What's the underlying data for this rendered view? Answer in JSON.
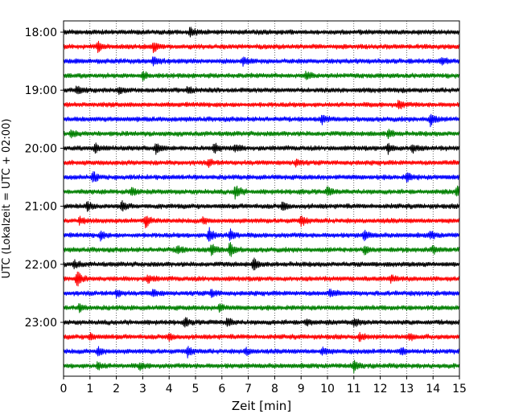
{
  "chart_data": {
    "type": "line",
    "title": "",
    "xlabel": "Zeit  [min]",
    "ylabel": "UTC (Lokalzeit = UTC + 02:00)",
    "xlim": [
      0,
      15
    ],
    "x_ticks": [
      0,
      1,
      2,
      3,
      4,
      5,
      6,
      7,
      8,
      9,
      10,
      11,
      12,
      13,
      14,
      15
    ],
    "x_tick_labels": [
      "0",
      "1",
      "2",
      "3",
      "4",
      "5",
      "6",
      "7",
      "8",
      "9",
      "10",
      "11",
      "12",
      "13",
      "14",
      "15"
    ],
    "y_tick_labels": [
      "18:00",
      "19:00",
      "20:00",
      "21:00",
      "22:00",
      "23:00"
    ],
    "grid": "vertical dotted",
    "trace_colors": [
      "#000000",
      "#ff0000",
      "#0000ff",
      "#008000"
    ],
    "traces": [
      {
        "start": "18:00",
        "events": [
          [
            4.8,
            2.2
          ]
        ]
      },
      {
        "start": "18:15",
        "events": [
          [
            1.3,
            2.0
          ],
          [
            3.4,
            2.5
          ]
        ]
      },
      {
        "start": "18:30",
        "events": [
          [
            3.4,
            2.0
          ],
          [
            6.8,
            1.8
          ],
          [
            14.3,
            1.6
          ]
        ]
      },
      {
        "start": "18:45",
        "events": [
          [
            3.0,
            1.7
          ],
          [
            9.2,
            1.8
          ]
        ]
      },
      {
        "start": "19:00",
        "events": [
          [
            0.5,
            1.5
          ],
          [
            2.1,
            1.4
          ],
          [
            4.7,
            1.4
          ]
        ]
      },
      {
        "start": "19:15",
        "events": [
          [
            12.7,
            1.8
          ]
        ]
      },
      {
        "start": "19:30",
        "events": [
          [
            9.8,
            1.6
          ],
          [
            13.9,
            3.0
          ]
        ]
      },
      {
        "start": "19:45",
        "events": [
          [
            0.3,
            1.5
          ],
          [
            12.3,
            1.7
          ]
        ]
      },
      {
        "start": "20:00",
        "events": [
          [
            1.2,
            1.9
          ],
          [
            3.5,
            2.6
          ],
          [
            5.7,
            2.4
          ],
          [
            6.5,
            1.7
          ],
          [
            12.3,
            2.0
          ],
          [
            13.2,
            2.0
          ]
        ]
      },
      {
        "start": "20:15",
        "events": [
          [
            5.5,
            1.4
          ],
          [
            8.8,
            1.4
          ]
        ]
      },
      {
        "start": "20:30",
        "events": [
          [
            1.1,
            2.6
          ],
          [
            13.0,
            1.8
          ]
        ]
      },
      {
        "start": "20:45",
        "events": [
          [
            2.6,
            1.8
          ],
          [
            6.5,
            3.6
          ],
          [
            10.0,
            1.8
          ],
          [
            14.9,
            2.4
          ]
        ]
      },
      {
        "start": "21:00",
        "events": [
          [
            0.9,
            2.0
          ],
          [
            2.2,
            2.0
          ],
          [
            8.3,
            2.0
          ]
        ]
      },
      {
        "start": "21:15",
        "events": [
          [
            0.6,
            1.5
          ],
          [
            3.1,
            2.6
          ],
          [
            5.3,
            1.4
          ],
          [
            9.0,
            2.0
          ]
        ]
      },
      {
        "start": "21:30",
        "events": [
          [
            1.4,
            1.8
          ],
          [
            5.5,
            3.4
          ],
          [
            6.3,
            2.6
          ],
          [
            11.4,
            2.0
          ],
          [
            13.9,
            1.6
          ]
        ]
      },
      {
        "start": "21:45",
        "events": [
          [
            4.3,
            1.8
          ],
          [
            5.6,
            2.4
          ],
          [
            6.3,
            3.2
          ],
          [
            11.4,
            1.8
          ],
          [
            14.0,
            1.6
          ]
        ]
      },
      {
        "start": "22:00",
        "events": [
          [
            0.4,
            1.6
          ],
          [
            7.2,
            2.6
          ]
        ]
      },
      {
        "start": "22:15",
        "events": [
          [
            0.5,
            4.0
          ],
          [
            3.2,
            1.8
          ],
          [
            12.4,
            1.6
          ]
        ]
      },
      {
        "start": "22:30",
        "events": [
          [
            2.0,
            1.5
          ],
          [
            3.4,
            1.6
          ],
          [
            5.6,
            1.6
          ],
          [
            10.1,
            1.5
          ]
        ]
      },
      {
        "start": "22:45",
        "events": [
          [
            0.6,
            1.3
          ],
          [
            5.9,
            1.5
          ]
        ]
      },
      {
        "start": "23:00",
        "events": [
          [
            4.6,
            1.6
          ],
          [
            6.2,
            1.8
          ],
          [
            9.2,
            1.5
          ],
          [
            11.0,
            1.8
          ]
        ]
      },
      {
        "start": "23:15",
        "events": [
          [
            1.0,
            1.4
          ],
          [
            4.0,
            1.5
          ],
          [
            11.2,
            1.8
          ],
          [
            13.1,
            1.4
          ]
        ]
      },
      {
        "start": "23:30",
        "events": [
          [
            1.3,
            2.0
          ],
          [
            4.7,
            2.0
          ],
          [
            6.9,
            1.6
          ],
          [
            9.8,
            1.6
          ],
          [
            12.8,
            1.8
          ]
        ]
      },
      {
        "start": "23:45",
        "events": [
          [
            1.3,
            1.6
          ],
          [
            2.9,
            1.4
          ],
          [
            11.0,
            2.2
          ]
        ]
      }
    ]
  }
}
